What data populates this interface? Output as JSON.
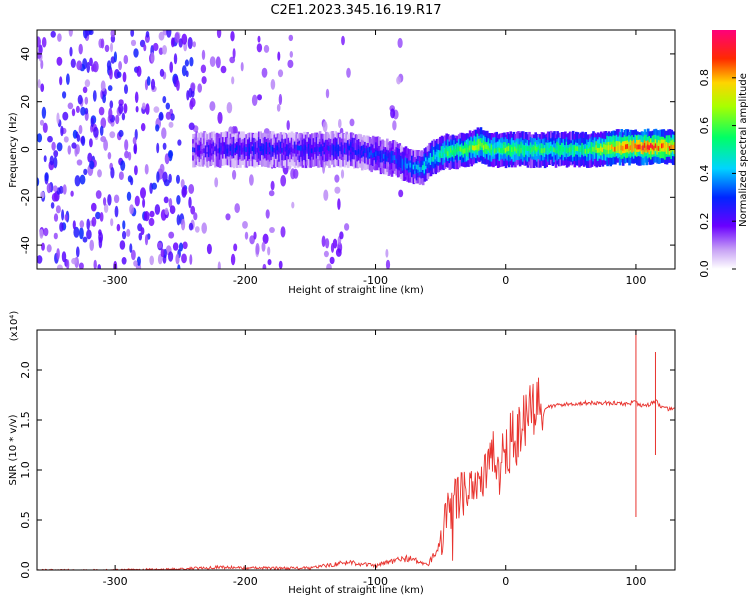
{
  "figure": {
    "title": "C2E1.2023.345.16.19.R17"
  },
  "chart_data": [
    {
      "type": "heatmap",
      "xlabel": "Height of straight line (km)",
      "ylabel": "Frequency (Hz)",
      "xlim": [
        -360,
        130
      ],
      "ylim": [
        -50,
        50
      ],
      "x_ticks": [
        -300,
        -200,
        -100,
        0,
        100
      ],
      "y_ticks": [
        -40,
        -20,
        0,
        20,
        40
      ],
      "colorbar": {
        "label": "Normalized spectral amplitude",
        "ticks": [
          0.0,
          0.2,
          0.4,
          0.6,
          0.8
        ],
        "range": [
          0,
          1
        ],
        "colormap": "rainbow (white-violet-blue-cyan-green-yellow-red-magenta)"
      },
      "description": "Dense noise across all frequencies for x < -240 km; concentrated band near 0 Hz from -240 km to 130 km; band dips to about -8 Hz near -70 km; strongest amplitudes (~0.9) near 0 Hz around x 70-120 km; sparse vertical noise streaks near -250 to -160 km, -140 to -120 km, -90 to -80 km.",
      "band_profile": {
        "x": [
          -240,
          -200,
          -150,
          -120,
          -100,
          -85,
          -75,
          -65,
          -55,
          -45,
          -30,
          -20,
          -10,
          0,
          20,
          60,
          90,
          110,
          130
        ],
        "center_freq": [
          0,
          0,
          0,
          0,
          -2,
          -4,
          -7,
          -8,
          -3,
          -1,
          0,
          2,
          0,
          0,
          0,
          0,
          1,
          1,
          1
        ],
        "amplitude": [
          0.2,
          0.25,
          0.25,
          0.25,
          0.3,
          0.3,
          0.35,
          0.4,
          0.45,
          0.55,
          0.6,
          0.7,
          0.55,
          0.6,
          0.55,
          0.55,
          0.85,
          0.9,
          0.8
        ]
      }
    },
    {
      "type": "line",
      "xlabel": "Height of straight line (km)",
      "ylabel": "SNR (10 * v/v)",
      "y_multiplier": "(x10⁴)",
      "xlim": [
        -360,
        130
      ],
      "ylim": [
        0,
        2.4
      ],
      "x_ticks": [
        -300,
        -200,
        -100,
        0,
        100
      ],
      "y_ticks": [
        0.0,
        0.5,
        1.0,
        1.5,
        2.0
      ],
      "color": "#e8332e",
      "series": [
        {
          "x": [
            -360,
            -300,
            -250,
            -220,
            -200,
            -150,
            -130,
            -120,
            -100,
            -90,
            -75,
            -60,
            -50,
            -45,
            -40,
            -35,
            -30,
            -20,
            -10,
            0,
            10,
            20,
            30,
            40,
            60,
            80,
            95,
            100,
            102,
            110,
            115,
            120,
            130
          ],
          "y": [
            0.0,
            0.0,
            0.01,
            0.03,
            0.02,
            0.02,
            0.06,
            0.08,
            0.04,
            0.08,
            0.12,
            0.05,
            0.25,
            0.55,
            0.7,
            0.75,
            0.85,
            0.9,
            1.1,
            1.2,
            1.4,
            1.55,
            1.62,
            1.65,
            1.67,
            1.67,
            1.66,
            1.7,
            1.65,
            1.65,
            1.7,
            1.62,
            1.6
          ]
        }
      ],
      "spikes": [
        {
          "x": 100,
          "y_high": 2.4,
          "y_low": 0.53
        },
        {
          "x": 115,
          "y_high": 2.18,
          "y_low": 1.15
        }
      ]
    }
  ]
}
